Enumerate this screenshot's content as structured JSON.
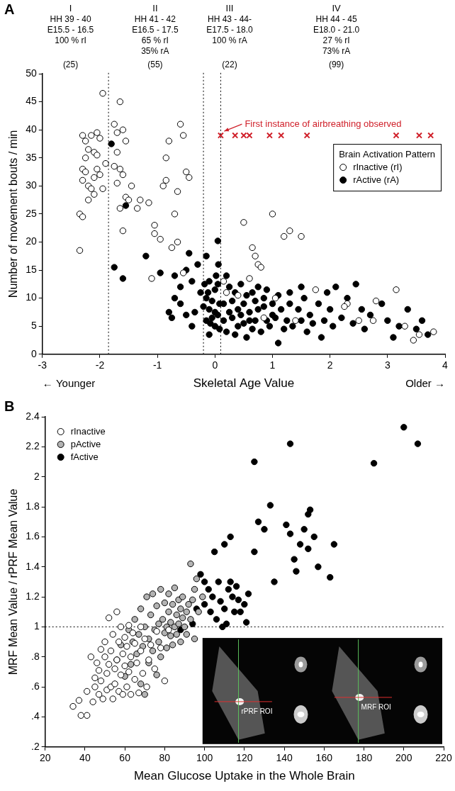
{
  "chart_data": [
    {
      "type": "scatter",
      "panel_label": "A",
      "x_label": "Skeletal Age Value",
      "y_label": "Number of movement bouts / min",
      "x_notes": [
        "← Younger",
        "Older →"
      ],
      "xlim": [
        -3,
        4
      ],
      "xticks": [
        -3,
        -2,
        -1,
        0,
        1,
        2,
        3,
        4
      ],
      "ylim": [
        0,
        50
      ],
      "yticks": [
        0,
        5,
        10,
        15,
        20,
        25,
        30,
        35,
        40,
        45,
        50
      ],
      "grid": false,
      "legend": "upper right",
      "legend_title": "Brain Activation Pattern",
      "stage_boundaries": [
        -1.85,
        -0.2,
        0.1
      ],
      "stages": [
        {
          "label": "I",
          "lines": [
            "HH 39 - 40",
            "E15.5 - 16.5",
            "100 % rI"
          ],
          "count": {
            "value": 25,
            "label": "(25)"
          }
        },
        {
          "label": "II",
          "lines": [
            "HH 41 - 42",
            "E16.5 - 17.5",
            "65 % rI",
            "35% rA"
          ],
          "count": {
            "value": 55,
            "label": "(55)"
          }
        },
        {
          "label": "III",
          "lines": [
            "HH 43 - 44-",
            "E17.5 - 18.0",
            "100 % rA"
          ],
          "count": {
            "value": 22,
            "label": "(22)"
          }
        },
        {
          "label": "IV",
          "lines": [
            "HH 44 - 45",
            "E18.0 - 21.0",
            "27 % rI",
            "73% rA"
          ],
          "count": {
            "value": 99,
            "label": "(99)"
          }
        }
      ],
      "annotation": "First instance of airbreathing observed",
      "series": [
        {
          "name": "rInactive (rI)",
          "color": "#000000",
          "marker": "open_circle",
          "x": [
            -2.35,
            -2.3,
            -2.35,
            -2.3,
            -2.25,
            -2.2,
            -2.25,
            -2.3,
            -2.3,
            -2.25,
            -2.2,
            -2.15,
            -2.1,
            -2.05,
            -2.1,
            -2.15,
            -2.05,
            -2.0,
            -1.95,
            -2.0,
            -1.95,
            -2.1,
            -1.9,
            -2.2,
            -2.05,
            -1.75,
            -1.65,
            -1.7,
            -1.6,
            -1.55,
            -1.7,
            -1.75,
            -1.65,
            -1.6,
            -1.7,
            -1.55,
            -1.5,
            -1.65,
            -1.6,
            -1.45,
            -1.35,
            -1.3,
            -1.15,
            -1.1,
            -1.05,
            -1.05,
            -0.95,
            -0.9,
            -0.85,
            -0.85,
            -0.8,
            -0.75,
            -0.7,
            -0.65,
            -0.6,
            -0.55,
            -0.5,
            -0.45,
            -0.65,
            -0.55,
            0.15,
            0.2,
            0.5,
            0.65,
            0.7,
            0.75,
            0.6,
            0.8,
            1.0,
            1.2,
            1.3,
            1.5,
            1.05,
            0.4,
            0.85,
            1.4,
            1.75,
            2.3,
            2.25,
            2.5,
            2.75,
            2.8,
            3.15,
            3.3,
            3.45,
            3.55,
            3.8
          ],
          "values": [
            25,
            24.5,
            18.5,
            39,
            38,
            36.5,
            35,
            33,
            31,
            32.5,
            30,
            29.5,
            31.5,
            33,
            36,
            39,
            39.5,
            38.5,
            46.5,
            32,
            29.5,
            28.5,
            34,
            27.5,
            35.5,
            41,
            45,
            39.5,
            40,
            38,
            36,
            33.5,
            33,
            32,
            30.5,
            28,
            27.5,
            26,
            22,
            30,
            26,
            27.5,
            27,
            13.5,
            23,
            21.5,
            20.5,
            30,
            31,
            35,
            38,
            19,
            25,
            29,
            41,
            39,
            32.5,
            31.5,
            20,
            14.5,
            13,
            11,
            23.5,
            19,
            17.5,
            16,
            13.5,
            15.5,
            25,
            21,
            22,
            21,
            10,
            10.5,
            6.5,
            6,
            11.5,
            9,
            8.5,
            6,
            6,
            9.5,
            11.5,
            5,
            2.5,
            3.5,
            4
          ]
        },
        {
          "name": "rActive (rA)",
          "color": "#000000",
          "marker": "filled_circle",
          "x": [
            -1.8,
            -1.75,
            -1.6,
            -1.55,
            -1.2,
            -0.95,
            -0.7,
            -0.6,
            -0.45,
            -0.4,
            -0.35,
            -0.4,
            -0.5,
            -0.6,
            -0.7,
            -0.75,
            -0.8,
            -0.5,
            -0.3,
            -0.25,
            -0.15,
            -0.1,
            -0.15,
            -0.1,
            -0.15,
            -0.05,
            0,
            -0.05,
            0,
            0.05,
            0.05,
            0.05,
            0.08,
            -0.1,
            0,
            -0.2,
            -0.12,
            0.02,
            -0.08,
            0.08,
            -0.18,
            0.06,
            0.15,
            0.15,
            0.2,
            0.2,
            0.25,
            0.25,
            0.3,
            0.3,
            0.35,
            0.35,
            0.4,
            0.4,
            0.45,
            0.45,
            0.5,
            0.5,
            0.55,
            0.55,
            0.6,
            0.6,
            0.65,
            0.65,
            0.7,
            0.7,
            0.75,
            0.75,
            0.8,
            0.85,
            0.85,
            0.9,
            0.9,
            0.95,
            1.0,
            1.0,
            1.05,
            1.1,
            1.1,
            1.15,
            1.2,
            1.25,
            1.3,
            1.3,
            1.35,
            1.45,
            1.5,
            1.5,
            1.55,
            1.6,
            1.65,
            1.7,
            1.8,
            1.85,
            1.9,
            1.95,
            2.0,
            2.05,
            2.1,
            2.2,
            2.3,
            2.4,
            2.45,
            2.55,
            2.6,
            2.7,
            2.9,
            3.0,
            3.1,
            3.2,
            3.35,
            3.5,
            3.6,
            3.7
          ],
          "values": [
            37.5,
            15.5,
            13.5,
            26.5,
            17.5,
            14.5,
            14,
            12,
            18,
            13,
            7.5,
            5,
            7,
            9,
            10,
            6.5,
            7.5,
            15,
            16,
            11,
            17.5,
            13,
            10,
            8,
            6,
            6.5,
            5,
            9.5,
            11.5,
            20.2,
            12.5,
            7,
            4.5,
            3.5,
            7.5,
            8.5,
            11,
            14,
            5.5,
            9,
            12.5,
            16,
            9,
            6,
            4,
            14,
            7.5,
            12,
            9.5,
            6.5,
            3.5,
            11,
            8,
            5,
            12.5,
            7,
            9,
            5.5,
            10.5,
            3,
            7.5,
            6,
            11,
            4.5,
            9.5,
            6,
            12,
            8,
            4,
            10,
            8.5,
            6,
            11.5,
            5,
            9,
            7,
            6.5,
            2,
            10.5,
            8,
            4.5,
            6,
            11,
            9,
            5,
            8,
            12,
            6,
            10,
            4,
            7,
            5.5,
            9,
            3,
            6,
            11,
            8,
            5,
            12,
            6.5,
            10,
            5.5,
            12.5,
            8,
            4.5,
            7,
            9,
            6,
            3,
            5,
            8,
            4.5,
            6,
            3.5
          ]
        },
        {
          "color": "#d0202a",
          "marker": "x",
          "x": [
            0.1,
            0.35,
            0.5,
            0.6,
            0.95,
            1.15,
            1.6,
            3.15,
            3.55,
            3.75
          ],
          "values": [
            39,
            39,
            39,
            39,
            39,
            39,
            39,
            39,
            39,
            39
          ]
        }
      ]
    },
    {
      "type": "scatter",
      "panel_label": "B",
      "x_label": "Mean Glucose Uptake in the Whole Brain",
      "y_label": "MRF Mean Value / rPRF Mean Value",
      "xlim": [
        20,
        220
      ],
      "xticks": [
        20,
        40,
        60,
        80,
        100,
        120,
        140,
        160,
        180,
        200,
        220
      ],
      "ylim": [
        0.2,
        2.4
      ],
      "yticks": [
        {
          "value": 0.2,
          "label": ".2"
        },
        {
          "value": 0.4,
          "label": ".4"
        },
        {
          "value": 0.6,
          "label": ".6"
        },
        {
          "value": 0.8,
          "label": ".8"
        },
        1,
        1.2,
        1.4,
        1.6,
        1.8,
        2,
        2.2,
        2.4
      ],
      "grid": false,
      "legend": "upper left",
      "reference_y": 1,
      "inset_labels": [
        "rPRF ROI",
        "MRF ROI"
      ],
      "series": [
        {
          "name": "rInactive",
          "color": "#000000",
          "marker": "open_circle",
          "x": [
            34,
            38,
            41,
            37,
            41,
            43,
            44,
            45,
            45,
            46,
            47,
            47,
            48,
            48,
            49,
            50,
            50,
            51,
            51,
            52,
            52,
            53,
            53,
            54,
            54,
            55,
            55,
            56,
            56,
            57,
            57,
            58,
            58,
            59,
            59,
            60,
            60,
            61,
            61,
            62,
            62,
            63,
            63,
            64,
            65,
            65,
            66,
            67,
            68,
            68,
            69,
            70,
            71,
            72,
            73,
            75,
            76,
            78,
            80,
            82
          ],
          "values": [
            0.47,
            0.41,
            0.41,
            0.51,
            0.57,
            0.8,
            0.5,
            0.6,
            0.66,
            0.76,
            0.55,
            0.71,
            0.85,
            0.64,
            0.52,
            0.9,
            0.8,
            0.58,
            0.69,
            0.75,
            1.06,
            0.6,
            0.84,
            0.95,
            0.52,
            0.62,
            0.72,
            1.1,
            0.78,
            0.57,
            0.9,
            0.68,
            1.0,
            0.82,
            0.55,
            0.93,
            0.74,
            0.6,
            0.87,
            1.01,
            0.7,
            0.55,
            0.8,
            0.96,
            0.65,
            0.89,
            0.76,
            0.56,
            0.84,
            1.0,
            0.69,
            0.92,
            0.6,
            0.78,
            0.88,
            0.72,
            0.97,
            0.86,
            0.64,
            0.98
          ]
        },
        {
          "name": "pActive",
          "color": "#b3b3b3",
          "marker": "filled_circle",
          "x": [
            56,
            58,
            60,
            62,
            63,
            64,
            65,
            66,
            67,
            68,
            68,
            69,
            70,
            70,
            71,
            72,
            72,
            73,
            74,
            74,
            75,
            76,
            76,
            77,
            77,
            78,
            78,
            79,
            80,
            80,
            81,
            81,
            82,
            82,
            83,
            83,
            84,
            84,
            85,
            85,
            86,
            86,
            87,
            87,
            88,
            88,
            89,
            89,
            90,
            91,
            91,
            92,
            93,
            93,
            94,
            95,
            95,
            96,
            97,
            99
          ],
          "values": [
            0.78,
            0.88,
            0.67,
            0.98,
            0.75,
            0.9,
            1.05,
            0.82,
            0.95,
            0.62,
            1.12,
            0.87,
            0.55,
            1.0,
            1.2,
            0.92,
            0.76,
            1.08,
            0.84,
            1.22,
            0.98,
            0.68,
            1.14,
            1.02,
            0.9,
            1.25,
            0.8,
            1.05,
            0.96,
            1.16,
            1.0,
            0.86,
            1.1,
            1.22,
            0.94,
            1.03,
            1.15,
            0.88,
            1.0,
            1.26,
            1.08,
            0.95,
            1.18,
            1.02,
            0.9,
            1.12,
            1.06,
            1.2,
            1.0,
            1.1,
            0.95,
            1.15,
            1.05,
            1.42,
            1.18,
            0.92,
            1.25,
            1.32,
            1.1,
            1.2
          ]
        },
        {
          "name": "fActive",
          "color": "#000000",
          "marker": "filled_circle",
          "x": [
            88,
            94,
            96,
            98,
            100,
            100,
            102,
            103,
            104,
            105,
            106,
            107,
            108,
            109,
            110,
            110,
            111,
            112,
            113,
            113,
            114,
            115,
            116,
            117,
            118,
            120,
            121,
            122,
            125,
            125,
            127,
            130,
            133,
            135,
            141,
            143,
            143,
            145,
            146,
            148,
            150,
            152,
            152,
            153,
            155,
            157,
            163,
            165,
            185,
            200,
            207
          ],
          "values": [
            0.98,
            1.02,
            1.12,
            1.35,
            1.15,
            1.3,
            1.25,
            1.1,
            1.2,
            1.5,
            1.05,
            1.3,
            1.17,
            1.0,
            1.55,
            1.12,
            1.02,
            1.25,
            1.3,
            1.6,
            1.2,
            1.1,
            1.27,
            1.18,
            1.1,
            1.15,
            1.03,
            1.22,
            2.1,
            1.5,
            1.7,
            1.65,
            1.81,
            1.3,
            1.68,
            1.62,
            2.22,
            1.45,
            1.37,
            1.55,
            1.65,
            1.75,
            1.52,
            1.78,
            1.6,
            1.4,
            1.33,
            1.55,
            2.09,
            2.33,
            2.22
          ]
        }
      ]
    }
  ]
}
